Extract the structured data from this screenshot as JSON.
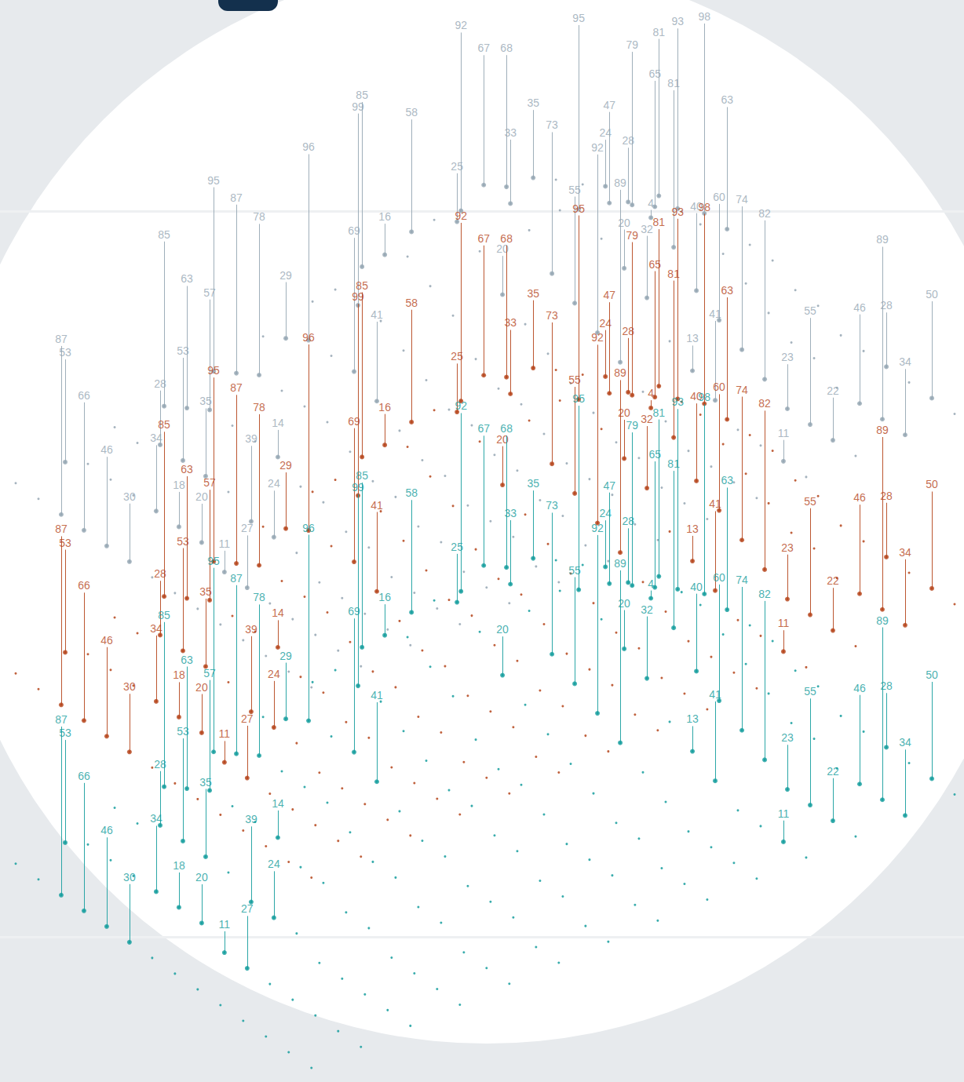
{
  "chart_data": {
    "type": "layered_surface",
    "tick_labels": false,
    "grid": false,
    "data_labels": true,
    "layers": [
      {
        "color": "#95a6b3"
      },
      {
        "color": "#b5451b"
      },
      {
        "color": "#159d9d"
      }
    ],
    "surface": [
      [
        0,
        0,
        1,
        1,
        2,
        3,
        4,
        5,
        6,
        6,
        5,
        3,
        2,
        1
      ],
      [
        0,
        1,
        1,
        2,
        3,
        4,
        6,
        7,
        8,
        9,
        8,
        6,
        3,
        1
      ],
      [
        0,
        1,
        2,
        3,
        4,
        5,
        6,
        8,
        9,
        10,
        9,
        7,
        4,
        2
      ],
      [
        0,
        1,
        2,
        3,
        4,
        5,
        6,
        7,
        8,
        8,
        8,
        7,
        5,
        2
      ],
      [
        0,
        1,
        2,
        3,
        4,
        5,
        5,
        6,
        6,
        6,
        7,
        7,
        5,
        2
      ],
      [
        0,
        1,
        2,
        3,
        4,
        4,
        4,
        4,
        5,
        5,
        6,
        6,
        4,
        2
      ],
      [
        0,
        1,
        1,
        2,
        3,
        3,
        3,
        3,
        4,
        4,
        5,
        4,
        3,
        1
      ],
      [
        0,
        0,
        1,
        2,
        2,
        2,
        3,
        3,
        3,
        3,
        3,
        3,
        2,
        1
      ],
      [
        0,
        0,
        1,
        1,
        2,
        2,
        2,
        2,
        2,
        2,
        2,
        2,
        1,
        0
      ],
      [
        0,
        0,
        0,
        1,
        1,
        1,
        2,
        1,
        1,
        1,
        1,
        1,
        1,
        0
      ],
      [
        0,
        0,
        0,
        0,
        1,
        1,
        1,
        1,
        1,
        0,
        0,
        0,
        0,
        0
      ],
      [
        0,
        0,
        0,
        0,
        0,
        1,
        1,
        1,
        0,
        0,
        0,
        0,
        0,
        0
      ],
      [
        0,
        0,
        0,
        0,
        0,
        0,
        0,
        0,
        0,
        0,
        0,
        0,
        0,
        0
      ],
      [
        0,
        0,
        0,
        0,
        0,
        0,
        0,
        0,
        0,
        0,
        0,
        0,
        0,
        0
      ]
    ],
    "spikes": [
      {
        "u": 0,
        "v": 1,
        "value": 53
      },
      {
        "u": 2,
        "v": 0,
        "value": 87
      },
      {
        "u": 3,
        "v": 0,
        "value": 66
      },
      {
        "u": 4,
        "v": 0,
        "value": 46
      },
      {
        "u": 5,
        "v": 0,
        "value": 30
      },
      {
        "u": 2,
        "v": 2,
        "value": 28
      },
      {
        "u": 4,
        "v": 1,
        "value": 34
      },
      {
        "u": 0,
        "v": 3,
        "value": 85
      },
      {
        "u": 1,
        "v": 3,
        "value": 63
      },
      {
        "u": 5,
        "v": 1,
        "value": 18
      },
      {
        "u": 2,
        "v": 3,
        "value": 57
      },
      {
        "u": 3,
        "v": 2,
        "value": 53
      },
      {
        "u": 4,
        "v": 2,
        "value": 35
      },
      {
        "u": 6,
        "v": 1,
        "value": 20
      },
      {
        "u": 0,
        "v": 4,
        "value": 95
      },
      {
        "u": 1,
        "v": 4,
        "value": 87
      },
      {
        "u": 7,
        "v": 1,
        "value": 11
      },
      {
        "u": 2,
        "v": 4,
        "value": 78
      },
      {
        "u": 5,
        "v": 3,
        "value": 14
      },
      {
        "u": 6,
        "v": 2,
        "value": 39
      },
      {
        "u": 8,
        "v": 1,
        "value": 27
      },
      {
        "u": 7,
        "v": 2,
        "value": 24
      },
      {
        "u": 1,
        "v": 5,
        "value": 29
      },
      {
        "u": 2,
        "v": 5,
        "value": 96
      },
      {
        "u": 4,
        "v": 5,
        "value": 69
      },
      {
        "u": 0,
        "v": 7,
        "value": 85
      },
      {
        "u": 5,
        "v": 5,
        "value": 41
      },
      {
        "u": 1,
        "v": 7,
        "value": 16
      },
      {
        "u": 2,
        "v": 6,
        "value": 99
      },
      {
        "u": 0,
        "v": 8,
        "value": 58
      },
      {
        "u": 2,
        "v": 8,
        "value": 25
      },
      {
        "u": 4,
        "v": 8,
        "value": 20
      },
      {
        "u": 0,
        "v": 10,
        "value": 33
      },
      {
        "u": 1,
        "v": 10,
        "value": 35
      },
      {
        "u": 3,
        "v": 10,
        "value": 95
      },
      {
        "u": 1,
        "v": 12,
        "value": 79
      },
      {
        "u": 0,
        "v": 12,
        "value": 47
      },
      {
        "u": 2,
        "v": 11,
        "value": 24
      },
      {
        "u": 3,
        "v": 11,
        "value": 28
      },
      {
        "u": 6,
        "v": 10,
        "value": 32
      },
      {
        "u": 2,
        "v": 12,
        "value": 65
      },
      {
        "u": 0,
        "v": 13,
        "value": 81
      },
      {
        "u": 2,
        "v": 13,
        "value": 98
      },
      {
        "u": 3,
        "v": 12,
        "value": 93
      },
      {
        "u": 0,
        "v": 9,
        "value": 92
      },
      {
        "u": 1,
        "v": 9,
        "value": 67
      },
      {
        "u": 2,
        "v": 9,
        "value": 68
      },
      {
        "u": 4,
        "v": 9,
        "value": 73
      },
      {
        "u": 7,
        "v": 9,
        "value": 89
      },
      {
        "u": 6,
        "v": 9,
        "value": 92
      },
      {
        "u": 5,
        "v": 10,
        "value": 20
      },
      {
        "u": 5,
        "v": 11,
        "value": 81
      },
      {
        "u": 5,
        "v": 9,
        "value": 55
      },
      {
        "u": 9,
        "v": 10,
        "value": 41
      },
      {
        "u": 3,
        "v": 13,
        "value": 63
      },
      {
        "u": 8,
        "v": 11,
        "value": 74
      },
      {
        "u": 6,
        "v": 11,
        "value": 40
      },
      {
        "u": 4,
        "v": 11,
        "value": 4
      },
      {
        "u": 8,
        "v": 10,
        "value": 13
      },
      {
        "u": 7,
        "v": 11,
        "value": 60
      },
      {
        "u": 9,
        "v": 11,
        "value": 82
      },
      {
        "u": 11,
        "v": 11,
        "value": 55
      },
      {
        "u": 12,
        "v": 11,
        "value": 22
      },
      {
        "u": 12,
        "v": 12,
        "value": 89
      },
      {
        "u": 11,
        "v": 12,
        "value": 46
      },
      {
        "u": 13,
        "v": 12,
        "value": 34
      },
      {
        "u": 12,
        "v": 13,
        "value": 50
      },
      {
        "u": 10,
        "v": 13,
        "value": 28
      },
      {
        "u": 10,
        "v": 11,
        "value": 23
      },
      {
        "u": 12,
        "v": 10,
        "value": 11
      }
    ]
  }
}
